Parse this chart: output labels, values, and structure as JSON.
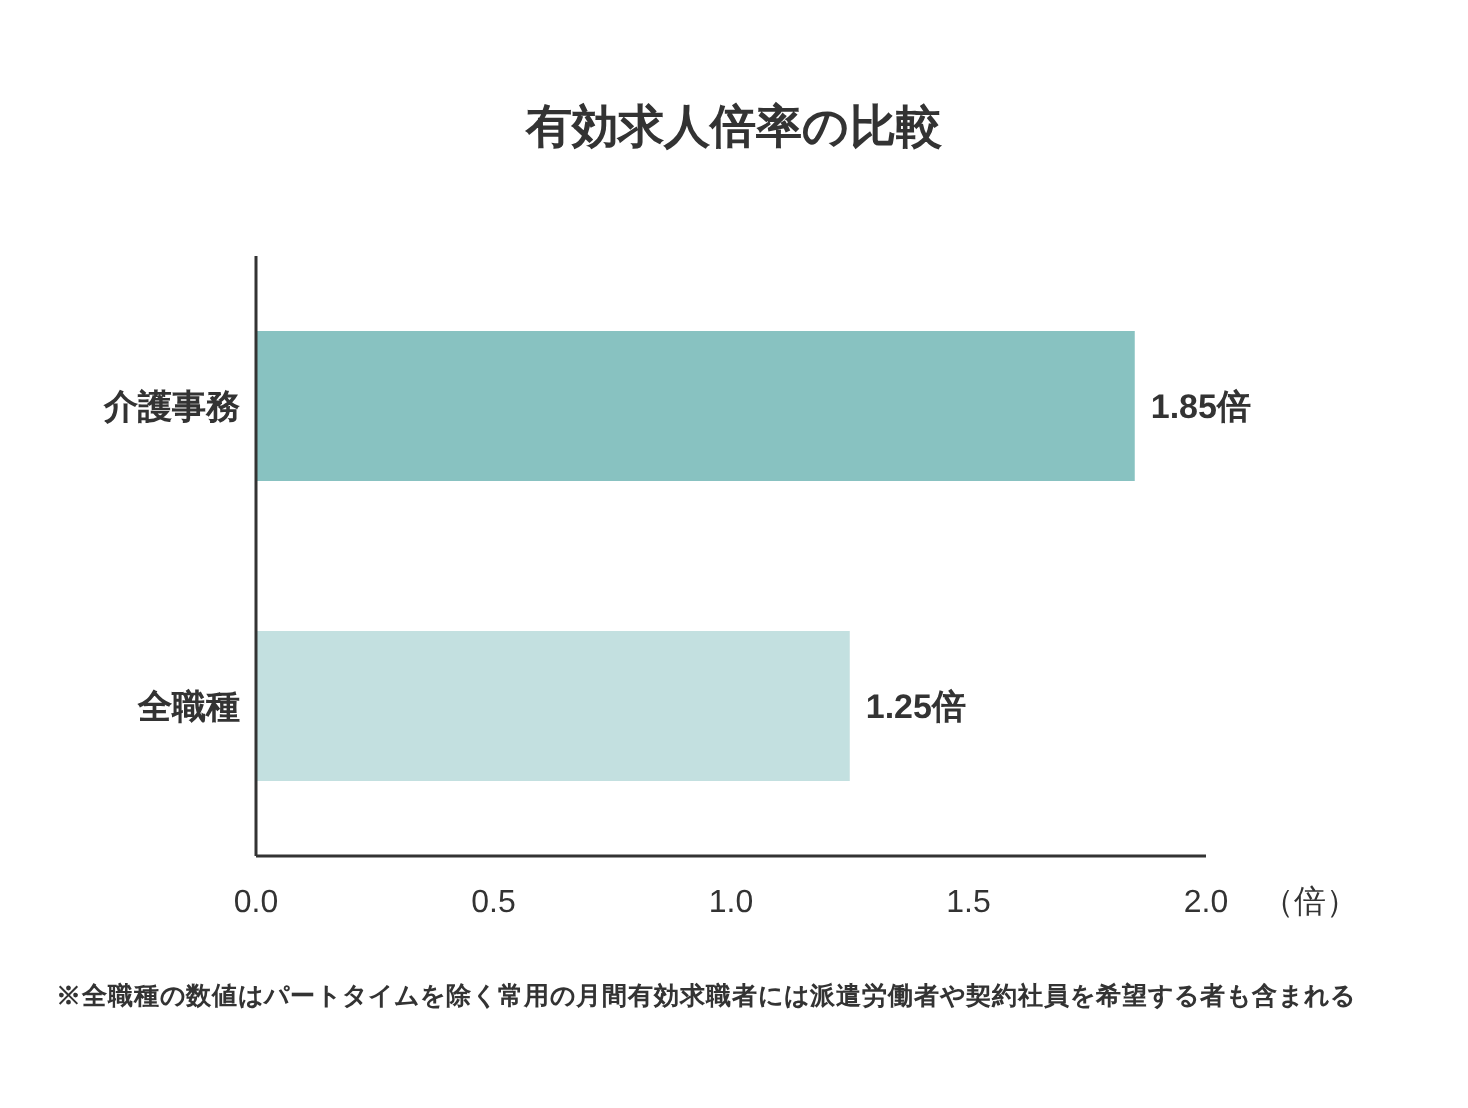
{
  "chart_data": {
    "type": "bar",
    "orientation": "horizontal",
    "title": "有効求人倍率の比較",
    "xlabel": "（倍）",
    "categories": [
      "介護事務",
      "全職種"
    ],
    "values": [
      1.85,
      1.25
    ],
    "colors": [
      "#88c2c1",
      "#c3e0e0"
    ],
    "value_labels": [
      "1.85倍",
      "1.25倍"
    ],
    "xlim": [
      0,
      2.0
    ],
    "xticks": [
      {
        "value": 0,
        "label": "0.0"
      },
      {
        "value": 0.5,
        "label": "0.5"
      },
      {
        "value": 1,
        "label": "1.0"
      },
      {
        "value": 1.5,
        "label": "1.5"
      },
      {
        "value": 2,
        "label": "2.0"
      }
    ],
    "annotations": [
      "※全職種の数値はパートタイムを除く常用の月間有効求職者には派遣労働者や契約社員を希望する者も含まれる"
    ]
  }
}
